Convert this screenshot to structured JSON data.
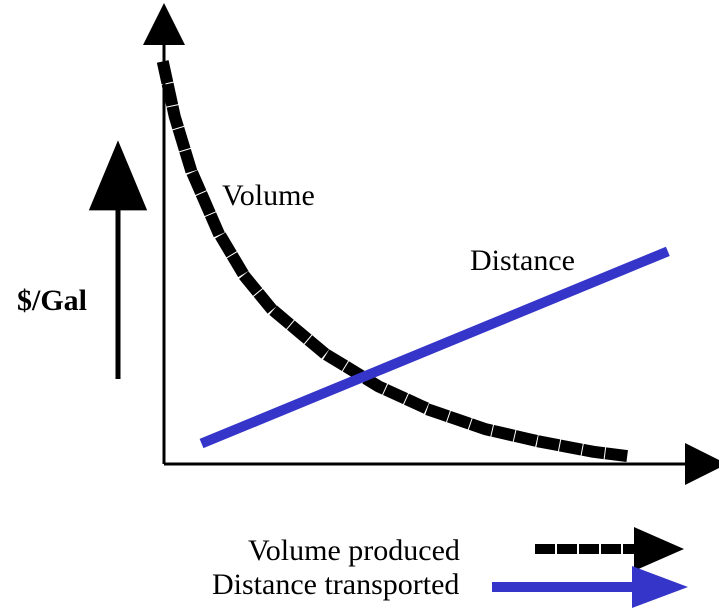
{
  "chart_data": {
    "type": "line",
    "title": "",
    "xlabel": "",
    "ylabel": "$/Gal",
    "ylim": [
      0,
      100
    ],
    "xlim": [
      0,
      100
    ],
    "grid": false,
    "series": [
      {
        "name": "Volume",
        "style": "dotted",
        "color": "#000000",
        "x": [
          0,
          2,
          5,
          10,
          15,
          20,
          30,
          40,
          50,
          60,
          70,
          80,
          86
        ],
        "y": [
          97,
          85,
          72,
          57,
          46,
          38,
          27,
          19,
          13,
          8.5,
          5.5,
          3,
          2
        ]
      },
      {
        "name": "Distance",
        "style": "solid",
        "color": "#3535c9",
        "x": [
          7,
          94
        ],
        "y": [
          5,
          52
        ]
      }
    ],
    "legend": {
      "placement": "bottom",
      "entries": [
        {
          "label": "Volume produced",
          "style": "dotted",
          "color": "#000000"
        },
        {
          "label": "Distance transported",
          "style": "solid",
          "color": "#3535c9"
        }
      ]
    }
  },
  "colors": {
    "axis": "#000000",
    "distance_line": "#3535c9",
    "volume_line": "#000000"
  }
}
